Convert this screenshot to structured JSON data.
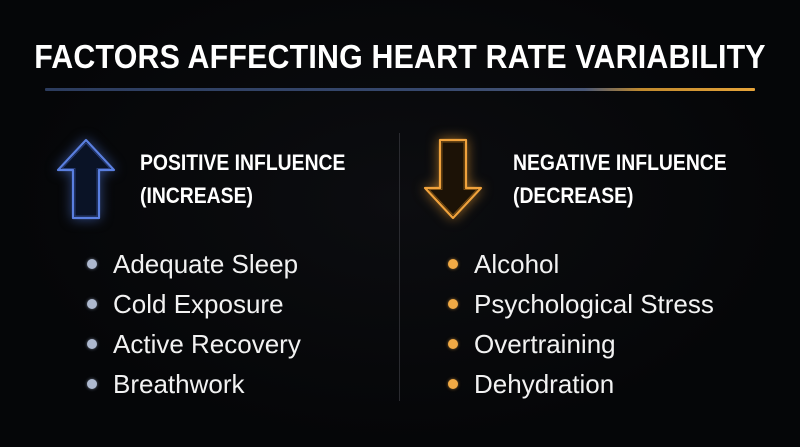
{
  "title": "FACTORS AFFECTING HEART RATE VARIABILITY",
  "colors": {
    "positive_accent": "#4a6fd6",
    "negative_accent": "#f0a23c",
    "background": "#050608",
    "text": "#ffffff"
  },
  "positive": {
    "icon": "arrow-up-icon",
    "heading_line1": "POSITIVE INFLUENCE",
    "heading_line2": "(INCREASE)",
    "items": [
      "Adequate Sleep",
      "Cold Exposure",
      "Active Recovery",
      "Breathwork"
    ]
  },
  "negative": {
    "icon": "arrow-down-icon",
    "heading_line1": "NEGATIVE INFLUENCE",
    "heading_line2": "(DECREASE)",
    "items": [
      "Alcohol",
      "Psychological Stress",
      "Overtraining",
      "Dehydration"
    ]
  }
}
